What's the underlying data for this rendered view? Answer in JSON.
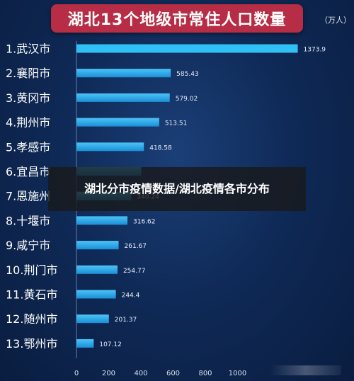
{
  "chart_data": {
    "type": "bar",
    "orientation": "horizontal",
    "title": "湖北13个地级市常住人口数量",
    "unit": "（万人）",
    "categories": [
      "1.武汉市",
      "2.襄阳市",
      "3.黄冈市",
      "4.荆州市",
      "5.孝感市",
      "6.宜昌市",
      "7.恩施州",
      "8.十堰市",
      "9.咸宁市",
      "10.荆门市",
      "11.黄石市",
      "12.随州市",
      "13.鄂州市"
    ],
    "values": [
      1373.9,
      585.43,
      579.02,
      513.51,
      418.58,
      401.76,
      340.24,
      316.62,
      261.67,
      254.77,
      244.4,
      201.37,
      107.12
    ],
    "value_labels": [
      "1373.9",
      "585.43",
      "579.02",
      "513.51",
      "418.58",
      "",
      "340.24",
      "316.62",
      "261.67",
      "254.77",
      "244.4",
      "201.37",
      "107.12"
    ],
    "x_ticks": [
      0,
      200,
      400,
      600,
      800,
      1000
    ],
    "xlim": [
      0,
      1400
    ],
    "grid": false,
    "bar_color": "#29a9e8",
    "highlight_bar_color": "#2fc0f5"
  },
  "overlay": {
    "caption": "湖北分市疫情数据/湖北疫情各市分布"
  }
}
